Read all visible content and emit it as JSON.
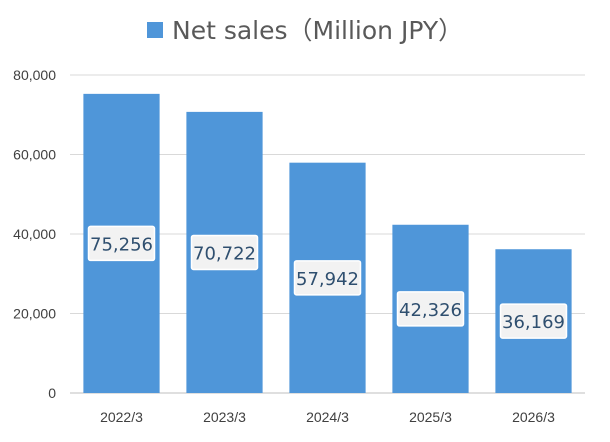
{
  "chart_data": {
    "type": "bar",
    "categories": [
      "2022/3",
      "2023/3",
      "2024/3",
      "2025/3",
      "2026/3"
    ],
    "series": [
      {
        "name": "Net sales（Million JPY）",
        "values": [
          75256,
          70722,
          57942,
          42326,
          36169
        ],
        "color": "#4f96d9"
      }
    ],
    "data_labels": [
      "75,256",
      "70,722",
      "57,942",
      "42,326",
      "36,169"
    ],
    "y_ticks": [
      0,
      20000,
      40000,
      60000,
      80000
    ],
    "y_tick_labels": [
      "0",
      "20,000",
      "40,000",
      "60,000",
      "80,000"
    ],
    "ylim": [
      0,
      80000
    ],
    "grid": true,
    "legend_position": "top-center",
    "colors": {
      "bar": "#4f96d9",
      "grid": "#d9d9d9",
      "axis": "#bfbfbf",
      "label_box_fill": "#f2f2f2",
      "label_box_stroke": "#ffffff"
    }
  }
}
